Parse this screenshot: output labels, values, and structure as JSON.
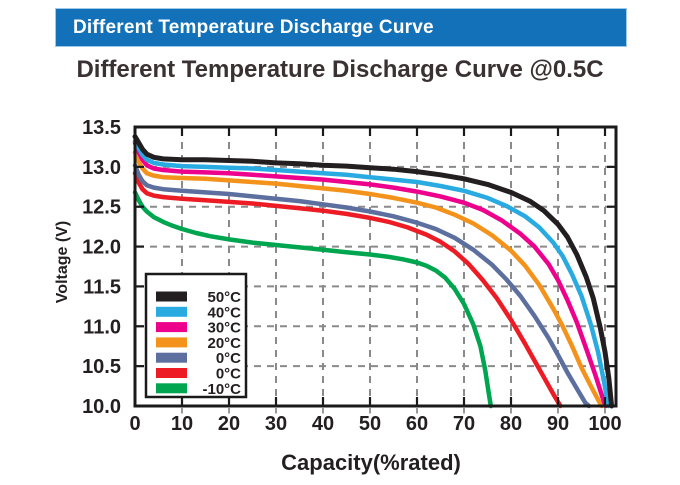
{
  "banner": {
    "title": "Different Temperature Discharge Curve",
    "bg_color": "#1271b8",
    "text_color": "#ffffff",
    "border_color": "#9ec9e8"
  },
  "subtitle": "Different Temperature Discharge Curve @0.5C",
  "palette": {
    "grid": "#8a8a8a",
    "axis_border": "#1a1a1a",
    "tick_text": "#231f20",
    "subtitle_text": "#3a3232",
    "outer_tick": "#999999"
  },
  "chart_data": {
    "type": "line",
    "title": "Different Temperature Discharge Curve @0.5C",
    "xlabel": "Capacity(%rated)",
    "ylabel": "Voltage (V)",
    "xlim": [
      0,
      102.3
    ],
    "ylim": [
      10.0,
      13.5
    ],
    "grid": true,
    "legend_position": "lower-left",
    "x_ticks": [
      0,
      10,
      20,
      30,
      40,
      50,
      60,
      70,
      80,
      90,
      100
    ],
    "x_tick_labels": [
      "0",
      "10",
      "20",
      "30",
      "40",
      "50",
      "60",
      "70",
      "80",
      "90",
      "100"
    ],
    "y_ticks": [
      10.0,
      10.5,
      11.0,
      11.5,
      12.0,
      12.5,
      13.0,
      13.5
    ],
    "y_tick_labels": [
      "10.0",
      "10.5",
      "11.0",
      "11.5",
      "12.0",
      "12.5",
      "13.0",
      "13.5"
    ],
    "series": [
      {
        "name": "50°C",
        "color": "#231f20",
        "width": 5,
        "points": [
          [
            0,
            13.38
          ],
          [
            0.8,
            13.3
          ],
          [
            1.6,
            13.22
          ],
          [
            2.5,
            13.16
          ],
          [
            4,
            13.12
          ],
          [
            6,
            13.1
          ],
          [
            10,
            13.09
          ],
          [
            15,
            13.09
          ],
          [
            20,
            13.08
          ],
          [
            25,
            13.07
          ],
          [
            30,
            13.05
          ],
          [
            35,
            13.04
          ],
          [
            40,
            13.02
          ],
          [
            45,
            13.01
          ],
          [
            50,
            12.99
          ],
          [
            55,
            12.97
          ],
          [
            60,
            12.94
          ],
          [
            65,
            12.9
          ],
          [
            70,
            12.85
          ],
          [
            75,
            12.78
          ],
          [
            80,
            12.68
          ],
          [
            84,
            12.57
          ],
          [
            87,
            12.45
          ],
          [
            90,
            12.28
          ],
          [
            92,
            12.12
          ],
          [
            94,
            11.9
          ],
          [
            96,
            11.62
          ],
          [
            97.5,
            11.35
          ],
          [
            99,
            10.98
          ],
          [
            100,
            10.68
          ],
          [
            100.8,
            10.35
          ],
          [
            101.4,
            10.0
          ]
        ]
      },
      {
        "name": "40°C",
        "color": "#29abe2",
        "width": 4.5,
        "points": [
          [
            0,
            13.32
          ],
          [
            0.8,
            13.23
          ],
          [
            1.6,
            13.15
          ],
          [
            2.5,
            13.09
          ],
          [
            4,
            13.05
          ],
          [
            6,
            13.03
          ],
          [
            10,
            13.01
          ],
          [
            15,
            13.0
          ],
          [
            20,
            12.99
          ],
          [
            25,
            12.98
          ],
          [
            30,
            12.96
          ],
          [
            35,
            12.94
          ],
          [
            40,
            12.92
          ],
          [
            45,
            12.9
          ],
          [
            50,
            12.87
          ],
          [
            55,
            12.84
          ],
          [
            60,
            12.81
          ],
          [
            65,
            12.76
          ],
          [
            70,
            12.7
          ],
          [
            75,
            12.61
          ],
          [
            79,
            12.51
          ],
          [
            83,
            12.38
          ],
          [
            86,
            12.24
          ],
          [
            89,
            12.05
          ],
          [
            91,
            11.88
          ],
          [
            93,
            11.65
          ],
          [
            95,
            11.38
          ],
          [
            97,
            11.02
          ],
          [
            98.5,
            10.68
          ],
          [
            99.8,
            10.3
          ],
          [
            100.7,
            10.0
          ]
        ]
      },
      {
        "name": "30°C",
        "color": "#ec008c",
        "width": 4.5,
        "points": [
          [
            0,
            13.3
          ],
          [
            0.8,
            13.18
          ],
          [
            1.6,
            13.09
          ],
          [
            2.5,
            13.02
          ],
          [
            4,
            12.98
          ],
          [
            6,
            12.96
          ],
          [
            10,
            12.94
          ],
          [
            15,
            12.93
          ],
          [
            20,
            12.92
          ],
          [
            25,
            12.9
          ],
          [
            30,
            12.88
          ],
          [
            35,
            12.86
          ],
          [
            40,
            12.84
          ],
          [
            45,
            12.81
          ],
          [
            50,
            12.78
          ],
          [
            55,
            12.74
          ],
          [
            60,
            12.69
          ],
          [
            65,
            12.63
          ],
          [
            70,
            12.55
          ],
          [
            74,
            12.46
          ],
          [
            78,
            12.33
          ],
          [
            82,
            12.16
          ],
          [
            85,
            12.0
          ],
          [
            88,
            11.78
          ],
          [
            90,
            11.58
          ],
          [
            92,
            11.33
          ],
          [
            94,
            11.05
          ],
          [
            96,
            10.72
          ],
          [
            98,
            10.38
          ],
          [
            99.5,
            10.1
          ],
          [
            100.1,
            10.0
          ]
        ]
      },
      {
        "name": "20°C",
        "color": "#f3931b",
        "width": 4.5,
        "points": [
          [
            0,
            13.18
          ],
          [
            0.8,
            13.06
          ],
          [
            1.6,
            12.98
          ],
          [
            2.5,
            12.92
          ],
          [
            4,
            12.89
          ],
          [
            6,
            12.87
          ],
          [
            10,
            12.86
          ],
          [
            15,
            12.85
          ],
          [
            20,
            12.83
          ],
          [
            25,
            12.81
          ],
          [
            30,
            12.79
          ],
          [
            35,
            12.76
          ],
          [
            40,
            12.73
          ],
          [
            45,
            12.7
          ],
          [
            50,
            12.66
          ],
          [
            55,
            12.61
          ],
          [
            60,
            12.55
          ],
          [
            64,
            12.49
          ],
          [
            68,
            12.4
          ],
          [
            72,
            12.29
          ],
          [
            76,
            12.14
          ],
          [
            80,
            11.95
          ],
          [
            83,
            11.76
          ],
          [
            86,
            11.52
          ],
          [
            89,
            11.22
          ],
          [
            91,
            11.0
          ],
          [
            93,
            10.75
          ],
          [
            95,
            10.48
          ],
          [
            97,
            10.25
          ],
          [
            98.5,
            10.08
          ],
          [
            99.3,
            10.0
          ]
        ]
      },
      {
        "name": "0°C",
        "color": "#5c6f9e",
        "width": 4.5,
        "points": [
          [
            0,
            13.02
          ],
          [
            0.8,
            12.9
          ],
          [
            1.6,
            12.82
          ],
          [
            2.5,
            12.77
          ],
          [
            4,
            12.74
          ],
          [
            6,
            12.72
          ],
          [
            10,
            12.7
          ],
          [
            15,
            12.68
          ],
          [
            20,
            12.66
          ],
          [
            25,
            12.63
          ],
          [
            30,
            12.6
          ],
          [
            35,
            12.57
          ],
          [
            40,
            12.53
          ],
          [
            45,
            12.49
          ],
          [
            50,
            12.44
          ],
          [
            55,
            12.38
          ],
          [
            60,
            12.3
          ],
          [
            64,
            12.22
          ],
          [
            68,
            12.11
          ],
          [
            72,
            11.96
          ],
          [
            76,
            11.77
          ],
          [
            79,
            11.59
          ],
          [
            82,
            11.38
          ],
          [
            85,
            11.13
          ],
          [
            88,
            10.85
          ],
          [
            90,
            10.64
          ],
          [
            92,
            10.42
          ],
          [
            94,
            10.22
          ],
          [
            95.8,
            10.04
          ],
          [
            96.6,
            10.0
          ]
        ]
      },
      {
        "name": "0°C",
        "color": "#ed1c24",
        "width": 4.5,
        "points": [
          [
            0,
            12.92
          ],
          [
            0.8,
            12.8
          ],
          [
            1.6,
            12.72
          ],
          [
            2.5,
            12.67
          ],
          [
            4,
            12.64
          ],
          [
            6,
            12.62
          ],
          [
            10,
            12.6
          ],
          [
            15,
            12.58
          ],
          [
            20,
            12.56
          ],
          [
            25,
            12.54
          ],
          [
            30,
            12.51
          ],
          [
            35,
            12.48
          ],
          [
            40,
            12.45
          ],
          [
            45,
            12.41
          ],
          [
            50,
            12.36
          ],
          [
            54,
            12.31
          ],
          [
            58,
            12.24
          ],
          [
            62,
            12.15
          ],
          [
            65,
            12.06
          ],
          [
            68,
            11.94
          ],
          [
            71,
            11.78
          ],
          [
            74,
            11.58
          ],
          [
            77,
            11.35
          ],
          [
            80,
            11.08
          ],
          [
            83,
            10.78
          ],
          [
            85,
            10.57
          ],
          [
            87,
            10.36
          ],
          [
            89,
            10.15
          ],
          [
            90.5,
            10.0
          ]
        ]
      },
      {
        "name": "-10°C",
        "color": "#00a550",
        "width": 4.5,
        "points": [
          [
            0,
            12.68
          ],
          [
            0.8,
            12.58
          ],
          [
            1.6,
            12.5
          ],
          [
            2.5,
            12.44
          ],
          [
            4,
            12.37
          ],
          [
            6,
            12.31
          ],
          [
            8,
            12.26
          ],
          [
            10,
            12.22
          ],
          [
            13,
            12.17
          ],
          [
            16,
            12.13
          ],
          [
            20,
            12.09
          ],
          [
            25,
            12.05
          ],
          [
            30,
            12.02
          ],
          [
            35,
            11.99
          ],
          [
            40,
            11.96
          ],
          [
            45,
            11.93
          ],
          [
            50,
            11.9
          ],
          [
            54,
            11.87
          ],
          [
            57,
            11.84
          ],
          [
            60,
            11.8
          ],
          [
            62,
            11.76
          ],
          [
            64,
            11.7
          ],
          [
            66,
            11.61
          ],
          [
            68,
            11.47
          ],
          [
            70,
            11.28
          ],
          [
            72,
            11.02
          ],
          [
            73.5,
            10.75
          ],
          [
            74.5,
            10.45
          ],
          [
            75.3,
            10.15
          ],
          [
            75.7,
            10.0
          ]
        ]
      }
    ]
  }
}
